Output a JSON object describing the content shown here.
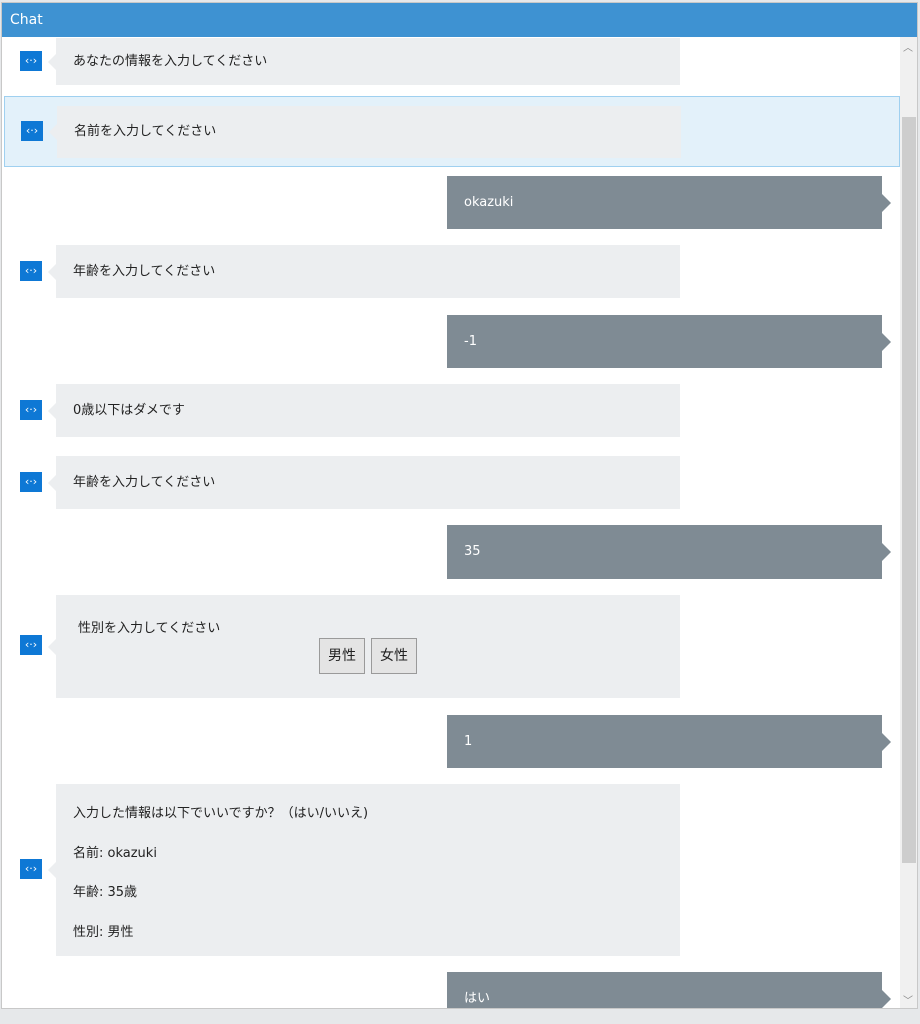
{
  "window": {
    "title": "Chat"
  },
  "messages": [
    {
      "from": "bot",
      "text": "あなたの情報を入力してください"
    },
    {
      "from": "bot",
      "text": "名前を入力してください",
      "selected": true
    },
    {
      "from": "user",
      "text": "okazuki"
    },
    {
      "from": "bot",
      "text": "年齢を入力してください"
    },
    {
      "from": "user",
      "text": "-1"
    },
    {
      "from": "bot",
      "text": "0歳以下はダメです"
    },
    {
      "from": "bot",
      "text": "年齢を入力してください"
    },
    {
      "from": "user",
      "text": "35"
    },
    {
      "from": "bot",
      "text": "性別を入力してください",
      "buttons": [
        "男性",
        "女性"
      ]
    },
    {
      "from": "user",
      "text": "1"
    },
    {
      "from": "bot",
      "lines": [
        "入力した情報は以下でいいですか？（はい/いいえ)",
        "名前: okazuki",
        "年齢: 35歳",
        "性別: 男性"
      ]
    },
    {
      "from": "user",
      "text": "はい"
    }
  ],
  "icons": {
    "bot": "bot-code-icon"
  },
  "colors": {
    "titlebar": "#3e92d2",
    "bot_bubble": "#eceef0",
    "user_bubble": "#7f8b94",
    "bot_icon": "#0e78d5"
  }
}
